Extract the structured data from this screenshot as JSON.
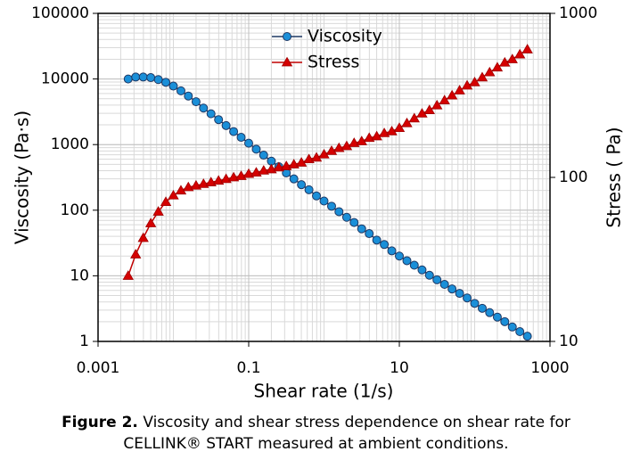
{
  "chart_data": {
    "type": "line",
    "xlabel": "Shear rate (1/s)",
    "ylabel": "Viscosity (Pa·s)",
    "y2label": "Stress ( Pa)",
    "xscale": "log",
    "yscale": "log",
    "y2scale": "log",
    "grid": true,
    "legend": "upper center",
    "xlim": [
      0.001,
      1000
    ],
    "xticks": [
      0.001,
      0.1,
      10,
      1000
    ],
    "ylim": [
      1,
      100000
    ],
    "yticks": [
      1,
      10,
      100,
      1000,
      10000,
      100000
    ],
    "y2lim": [
      10,
      1000
    ],
    "y2ticks": [
      10,
      100,
      1000
    ],
    "x": [
      0.00251,
      0.00316,
      0.00398,
      0.00501,
      0.00631,
      0.00794,
      0.01,
      0.0126,
      0.0158,
      0.02,
      0.0251,
      0.0316,
      0.0398,
      0.0501,
      0.0631,
      0.0794,
      0.1,
      0.126,
      0.158,
      0.2,
      0.251,
      0.316,
      0.398,
      0.501,
      0.631,
      0.794,
      1,
      1.26,
      1.58,
      2,
      2.51,
      3.16,
      3.98,
      5.01,
      6.31,
      7.94,
      10,
      12.6,
      15.8,
      20,
      25.1,
      31.6,
      39.8,
      50.1,
      63.1,
      79.4,
      100,
      126,
      158,
      200,
      251,
      316,
      398,
      501
    ],
    "series": [
      {
        "name": "Viscosity",
        "color": "#1a8fd8",
        "line_color": "#1f3864",
        "marker": "circle",
        "values": [
          10000,
          10700,
          10700,
          10500,
          9800,
          8900,
          7800,
          6600,
          5500,
          4500,
          3600,
          2950,
          2400,
          1950,
          1580,
          1290,
          1050,
          850,
          690,
          560,
          460,
          370,
          300,
          245,
          205,
          165,
          138,
          115,
          95,
          78,
          65,
          52,
          44,
          35,
          30,
          24,
          20,
          17,
          14.5,
          12.3,
          10.2,
          8.7,
          7.4,
          6.3,
          5.4,
          4.6,
          3.8,
          3.2,
          2.75,
          2.35,
          2.0,
          1.66,
          1.41,
          1.2
        ]
      },
      {
        "name": "Stress",
        "color": "#d40000",
        "line_color": "#c00000",
        "marker": "triangle",
        "axis": "y2",
        "values": [
          25.1,
          33.9,
          42.7,
          52.5,
          61.8,
          70.8,
          77.6,
          83.2,
          87.1,
          89.1,
          91.2,
          93.3,
          95.5,
          97.7,
          100,
          102,
          105,
          107,
          110,
          112,
          115,
          117,
          120,
          123,
          129,
          132,
          138,
          145,
          151,
          155,
          162,
          166,
          174,
          178,
          186,
          191,
          200,
          214,
          229,
          245,
          257,
          275,
          295,
          316,
          339,
          363,
          380,
          407,
          437,
          468,
          501,
          525,
          562,
          603
        ]
      }
    ],
    "caption": {
      "label": "Figure 2.",
      "text": "Viscosity and shear stress dependence on shear rate for CELLINK® START measured at ambient conditions."
    }
  }
}
